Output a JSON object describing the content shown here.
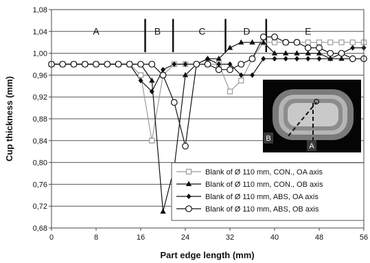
{
  "chart_data": {
    "type": "line",
    "xlabel": "Part edge length (mm)",
    "ylabel": "Cup thickness (mm)",
    "xlim": [
      0,
      56
    ],
    "ylim": [
      0.68,
      1.08
    ],
    "x_ticks": [
      "0",
      "8",
      "16",
      "24",
      "32",
      "40",
      "48",
      "56"
    ],
    "y_ticks": [
      "0,68",
      "0,72",
      "0,76",
      "0,80",
      "0,84",
      "0,88",
      "0,92",
      "0,96",
      "1,00",
      "1,04",
      "1,08"
    ],
    "grid": "horizontal",
    "legend_position": "bottom-right",
    "regions": [
      {
        "label": "A",
        "x": 8
      },
      {
        "label": "B",
        "x": 19
      },
      {
        "label": "C",
        "x": 27
      },
      {
        "label": "D",
        "x": 35
      },
      {
        "label": "E",
        "x": 46
      }
    ],
    "region_dividers": [
      16.8,
      21.8,
      31.2,
      38.5
    ],
    "series": [
      {
        "name": "Blank of Ø 110 mm, CON., OA axis",
        "marker": "square-open",
        "color": "#9a9a9a",
        "x": [
          0,
          2,
          4,
          6,
          8,
          10,
          12,
          14,
          16,
          18,
          20,
          22,
          24,
          26,
          28,
          30,
          32,
          34,
          36,
          38,
          40,
          42,
          44,
          46,
          48,
          50,
          52,
          54,
          56
        ],
        "y": [
          0.98,
          0.98,
          0.98,
          0.98,
          0.98,
          0.98,
          0.98,
          0.98,
          0.96,
          0.84,
          0.96,
          0.98,
          0.98,
          0.98,
          0.98,
          0.98,
          0.93,
          0.95,
          0.99,
          1.02,
          1.02,
          1.02,
          1.02,
          1.02,
          1.02,
          1.02,
          1.02,
          1.02,
          1.02
        ]
      },
      {
        "name": "Blank of Ø 110 mm, CON., OB axis",
        "marker": "triangle-filled",
        "color": "#111111",
        "x": [
          0,
          2,
          4,
          6,
          8,
          10,
          12,
          14,
          16,
          18,
          20,
          22,
          24,
          26,
          28,
          30,
          32,
          34,
          36,
          38,
          40,
          42,
          44,
          46,
          48,
          50,
          52,
          54,
          56
        ],
        "y": [
          0.98,
          0.98,
          0.98,
          0.98,
          0.98,
          0.98,
          0.98,
          0.98,
          0.98,
          0.95,
          0.71,
          0.79,
          0.96,
          0.98,
          0.99,
          0.99,
          1.01,
          1.02,
          1.02,
          1.02,
          1.0,
          1.0,
          1.0,
          1.0,
          1.0,
          0.99,
          0.99,
          0.99,
          0.99
        ]
      },
      {
        "name": "Blank of Ø 110 mm, ABS,  OA axis",
        "marker": "diamond-filled",
        "color": "#111111",
        "x": [
          0,
          2,
          4,
          6,
          8,
          10,
          12,
          14,
          16,
          18,
          20,
          22,
          24,
          26,
          28,
          30,
          32,
          34,
          36,
          38,
          40,
          42,
          44,
          46,
          48,
          50,
          52,
          54,
          56
        ],
        "y": [
          0.98,
          0.98,
          0.98,
          0.98,
          0.98,
          0.98,
          0.98,
          0.98,
          0.95,
          0.93,
          0.97,
          0.98,
          0.98,
          0.98,
          0.99,
          0.98,
          0.98,
          0.96,
          0.96,
          0.99,
          0.99,
          0.99,
          0.99,
          0.99,
          0.99,
          0.99,
          1.0,
          1.01,
          1.01
        ]
      },
      {
        "name": "Blank of Ø 110 mm, ABS,  OB axis",
        "marker": "circle-open",
        "color": "#111111",
        "x": [
          0,
          2,
          4,
          6,
          8,
          10,
          12,
          14,
          16,
          18,
          20,
          22,
          24,
          26,
          28,
          30,
          32,
          34,
          36,
          38,
          40,
          42,
          44,
          46,
          48,
          50,
          52,
          54,
          56
        ],
        "y": [
          0.98,
          0.98,
          0.98,
          0.98,
          0.98,
          0.98,
          0.98,
          0.98,
          0.98,
          0.98,
          0.96,
          0.91,
          0.83,
          0.98,
          0.98,
          0.97,
          0.97,
          0.98,
          0.99,
          1.03,
          1.03,
          1.02,
          1.02,
          1.01,
          1.01,
          1.0,
          1.0,
          0.99,
          0.99
        ]
      }
    ],
    "inset": {
      "labels": [
        "B",
        "A"
      ]
    }
  }
}
